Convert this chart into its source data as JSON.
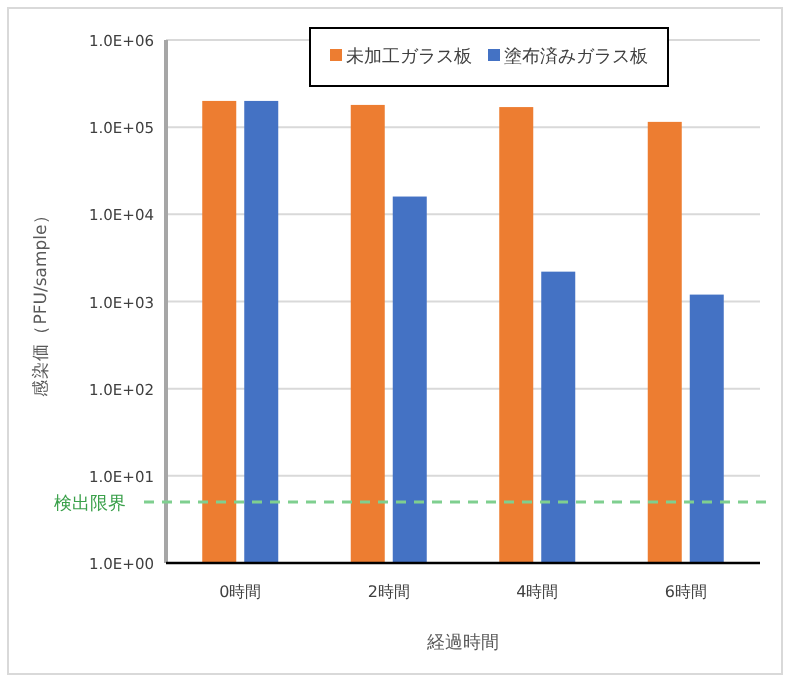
{
  "chart_data": {
    "type": "bar",
    "xlabel": "経過時間",
    "ylabel": "感染価（PFU/sample）",
    "categories": [
      "0時間",
      "2時間",
      "4時間",
      "6時間"
    ],
    "series": [
      {
        "name": "未加工ガラス板",
        "color": "#ed7d31",
        "values": [
          200000,
          180000,
          170000,
          115000
        ]
      },
      {
        "name": "塗布済みガラス板",
        "color": "#4472c4",
        "values": [
          200000,
          16000,
          2200,
          1200
        ]
      }
    ],
    "log": "y",
    "ylim": [
      1,
      1000000
    ],
    "yticks": [
      {
        "value": 1,
        "label": "1.0E+00"
      },
      {
        "value": 10,
        "label": "1.0E+01"
      },
      {
        "value": 100,
        "label": "1.0E+02"
      },
      {
        "value": 1000,
        "label": "1.0E+03"
      },
      {
        "value": 10000,
        "label": "1.0E+04"
      },
      {
        "value": 100000,
        "label": "1.0E+05"
      },
      {
        "value": 1000000,
        "label": "1.0E+06"
      }
    ],
    "ref_lines": [
      {
        "axis": "y",
        "value": 5,
        "label": "検出限界",
        "color": "#7fcf8f",
        "line_style": "dashed"
      }
    ],
    "grid": "y",
    "legend": "top right"
  }
}
